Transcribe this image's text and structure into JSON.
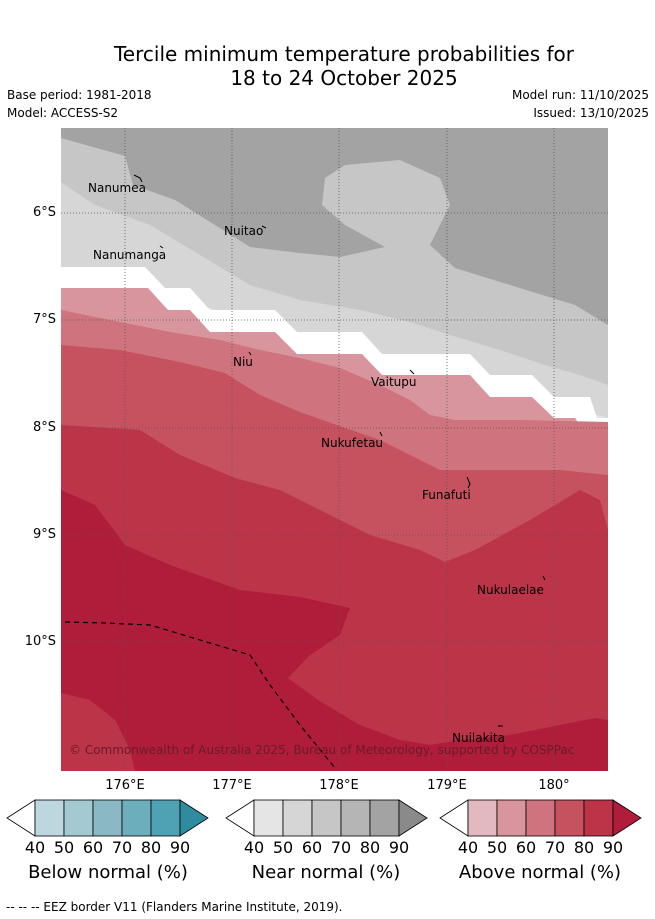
{
  "title": {
    "line1": "Tercile minimum temperature probabilities for",
    "line2": "18 to 24 October 2025"
  },
  "meta": {
    "base_period": "Base period: 1981-2018",
    "model": "Model: ACCESS-S2",
    "model_run": "Model run: 11/10/2025",
    "issued": "Issued: 13/10/2025"
  },
  "map": {
    "lat_labels": [
      "6°S",
      "7°S",
      "8°S",
      "9°S",
      "10°S"
    ],
    "lon_labels": [
      "176°E",
      "177°E",
      "178°E",
      "179°E",
      "180°"
    ],
    "places": [
      "Nanumea",
      "Nuitao",
      "Nanumanga",
      "Niu",
      "Vaitupu",
      "Nukufetau",
      "Funafuti",
      "Nukulaelae",
      "Nuilakita"
    ],
    "copyright": "© Commonwealth of Australia 2025, Bureau of Meteorology, supported by COSPPac"
  },
  "colorbars": {
    "ticks": [
      "40",
      "50",
      "60",
      "70",
      "80",
      "90"
    ],
    "below": {
      "label": "Below normal (%)",
      "colors": [
        "#ffffff",
        "#bdd7de",
        "#a5c9d0",
        "#8ab9c5",
        "#6daebd",
        "#4fa2b3",
        "#2e8c9e"
      ]
    },
    "near": {
      "label": "Near normal (%)",
      "colors": [
        "#ffffff",
        "#e5e5e5",
        "#d6d6d6",
        "#c6c6c6",
        "#b5b5b5",
        "#a3a3a3",
        "#8a8a8a"
      ]
    },
    "above": {
      "label": "Above normal (%)",
      "colors": [
        "#ffffff",
        "#e2b9c0",
        "#d9959d",
        "#cf747e",
        "#c5525e",
        "#bc3448",
        "#b01d3b"
      ]
    }
  },
  "footer": "--  --  -- EEZ border V11 (Flanders Marine Institute, 2019)."
}
